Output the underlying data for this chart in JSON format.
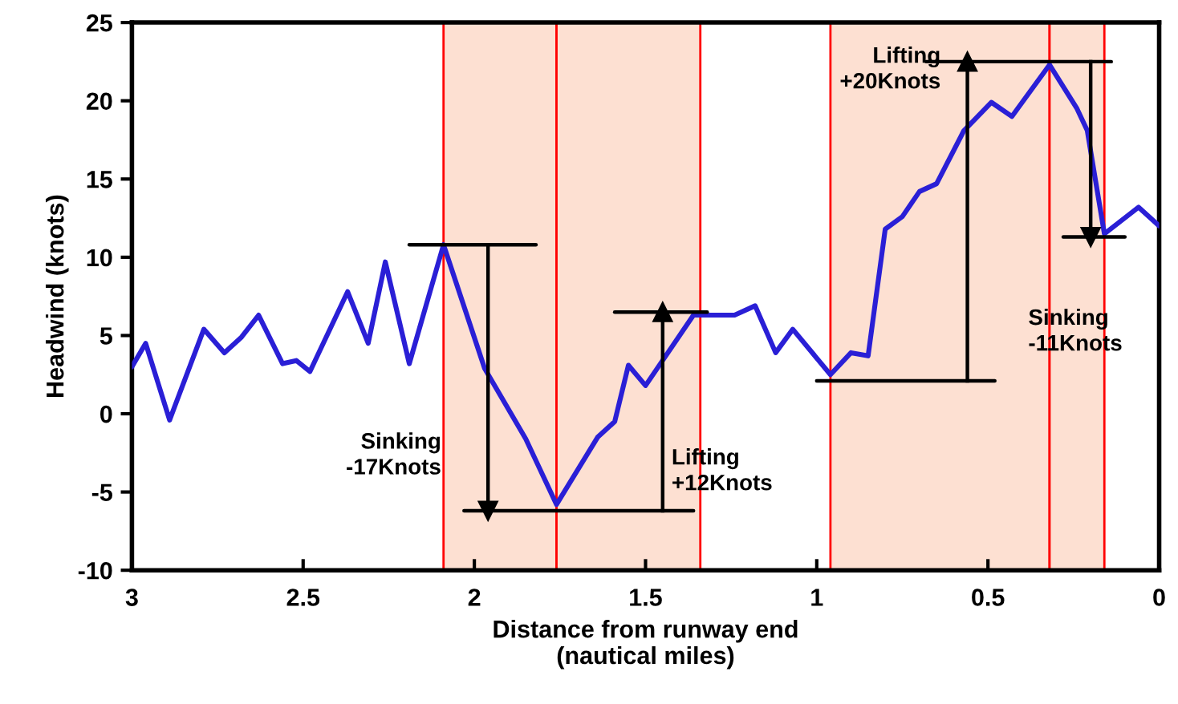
{
  "chart_data": {
    "type": "line",
    "xlabel": "Distance from runway end\n(nautical miles)",
    "ylabel": "Headwind (knots)",
    "xlim": [
      3,
      0
    ],
    "xticks": [
      3,
      2.5,
      2,
      1.5,
      1,
      0.5,
      0
    ],
    "ylim": [
      -10,
      25
    ],
    "yticks": [
      -10,
      -5,
      0,
      5,
      10,
      15,
      20,
      25
    ],
    "grid": false,
    "legend": false,
    "series": [
      {
        "color": "#2a1fd6",
        "x": [
          3.0,
          2.96,
          2.89,
          2.79,
          2.73,
          2.68,
          2.63,
          2.56,
          2.52,
          2.48,
          2.37,
          2.31,
          2.26,
          2.19,
          2.09,
          1.97,
          1.85,
          1.76,
          1.64,
          1.59,
          1.55,
          1.5,
          1.36,
          1.24,
          1.18,
          1.12,
          1.07,
          0.96,
          0.9,
          0.85,
          0.8,
          0.75,
          0.7,
          0.65,
          0.57,
          0.49,
          0.43,
          0.32,
          0.24,
          0.21,
          0.16,
          0.06,
          0.0
        ],
        "values": [
          3.0,
          4.5,
          -0.4,
          5.4,
          3.9,
          4.9,
          6.3,
          3.2,
          3.4,
          2.7,
          7.8,
          4.5,
          9.7,
          3.2,
          10.8,
          2.9,
          -1.6,
          -5.8,
          -1.5,
          -0.5,
          3.1,
          1.8,
          6.3,
          6.3,
          6.9,
          3.9,
          5.4,
          2.5,
          3.9,
          3.7,
          11.8,
          12.6,
          14.2,
          14.7,
          18.1,
          19.9,
          19.0,
          22.3,
          19.5,
          18.1,
          11.5,
          13.2,
          12.0
        ]
      },
      {
        "color": "#000000",
        "x": [
          2.19,
          1.82
        ],
        "values": [
          10.8,
          10.8
        ]
      },
      {
        "color": "#000000",
        "x": [
          2.03,
          1.36
        ],
        "values": [
          -6.2,
          -6.2
        ]
      },
      {
        "color": "#000000",
        "x": [
          1.59,
          1.32
        ],
        "values": [
          6.5,
          6.5
        ]
      },
      {
        "color": "#000000",
        "x": [
          1.0,
          0.48
        ],
        "values": [
          2.1,
          2.1
        ]
      },
      {
        "color": "#000000",
        "x": [
          0.68,
          0.14
        ],
        "values": [
          22.5,
          22.5
        ]
      },
      {
        "color": "#000000",
        "x": [
          0.28,
          0.1
        ],
        "values": [
          11.3,
          11.3
        ]
      },
      {
        "marker": "triangle",
        "color": "#000000",
        "x": [
          1.96,
          1.96
        ],
        "values": [
          10.8,
          -6.2
        ]
      },
      {
        "marker": "triangle",
        "color": "#000000",
        "x": [
          1.45,
          1.45
        ],
        "values": [
          -6.2,
          6.5
        ]
      },
      {
        "marker": "triangle",
        "color": "#000000",
        "x": [
          0.56,
          0.56
        ],
        "values": [
          2.1,
          22.5
        ]
      },
      {
        "marker": "triangle",
        "color": "#000000",
        "x": [
          0.2,
          0.2
        ],
        "values": [
          22.5,
          11.3
        ]
      }
    ],
    "bands": [
      {
        "axis": "x",
        "from": 2.09,
        "to": 1.76,
        "color": "#fde0d2"
      },
      {
        "axis": "x",
        "from": 1.76,
        "to": 1.34,
        "color": "#fde0d2"
      },
      {
        "axis": "x",
        "from": 0.96,
        "to": 0.32,
        "color": "#fde0d2"
      },
      {
        "axis": "x",
        "from": 0.32,
        "to": 0.16,
        "color": "#fde0d2"
      }
    ],
    "annotations": [
      "Sinking\n-17Knots",
      "Lifting\n+12Knots",
      "Lifting\n+20Knots",
      "Sinking\n-11Knots"
    ]
  }
}
